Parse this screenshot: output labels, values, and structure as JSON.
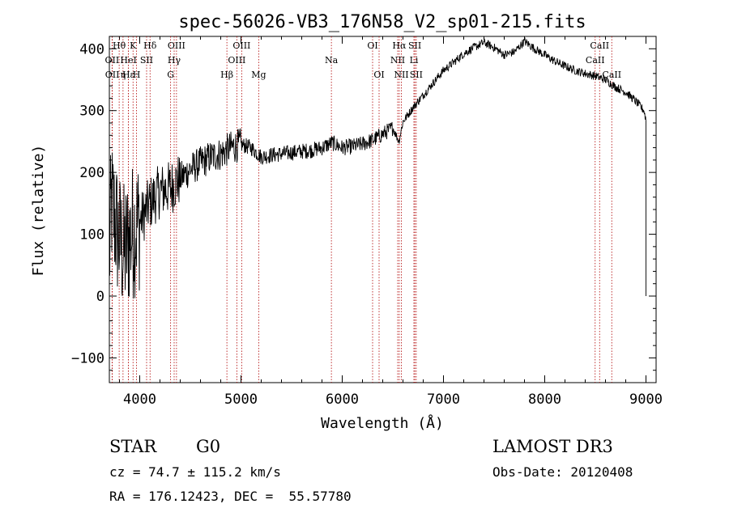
{
  "chart_data": {
    "type": "line",
    "title": "spec-56026-VB3_176N58_V2_sp01-215.fits",
    "xlabel": "Wavelength (Å)",
    "ylabel": "Flux (relative)",
    "xlim": [
      3700,
      9100
    ],
    "ylim": [
      -140,
      420
    ],
    "xticks": [
      4000,
      5000,
      6000,
      7000,
      8000,
      9000
    ],
    "yticks": [
      -100,
      0,
      100,
      200,
      300,
      400
    ],
    "grid": false,
    "series": [
      {
        "name": "flux",
        "anchors": [
          [
            3700,
            60
          ],
          [
            3720,
            150
          ],
          [
            3760,
            120
          ],
          [
            3800,
            90
          ],
          [
            3850,
            70
          ],
          [
            3900,
            95
          ],
          [
            3950,
            110
          ],
          [
            4000,
            120
          ],
          [
            4050,
            135
          ],
          [
            4100,
            150
          ],
          [
            4200,
            170
          ],
          [
            4300,
            175
          ],
          [
            4400,
            190
          ],
          [
            4500,
            205
          ],
          [
            4600,
            215
          ],
          [
            4700,
            225
          ],
          [
            4800,
            230
          ],
          [
            4900,
            240
          ],
          [
            5000,
            245
          ],
          [
            5100,
            240
          ],
          [
            5200,
            225
          ],
          [
            5300,
            228
          ],
          [
            5400,
            230
          ],
          [
            5500,
            232
          ],
          [
            5600,
            234
          ],
          [
            5700,
            236
          ],
          [
            5800,
            240
          ],
          [
            5900,
            248
          ],
          [
            6000,
            240
          ],
          [
            6100,
            242
          ],
          [
            6200,
            246
          ],
          [
            6300,
            252
          ],
          [
            6400,
            262
          ],
          [
            6500,
            272
          ],
          [
            6560,
            250
          ],
          [
            6600,
            282
          ],
          [
            6700,
            305
          ],
          [
            6800,
            325
          ],
          [
            6900,
            345
          ],
          [
            7000,
            365
          ],
          [
            7100,
            378
          ],
          [
            7200,
            392
          ],
          [
            7300,
            402
          ],
          [
            7400,
            410
          ],
          [
            7500,
            402
          ],
          [
            7600,
            390
          ],
          [
            7700,
            395
          ],
          [
            7800,
            412
          ],
          [
            7900,
            400
          ],
          [
            8000,
            390
          ],
          [
            8100,
            380
          ],
          [
            8200,
            372
          ],
          [
            8300,
            365
          ],
          [
            8400,
            360
          ],
          [
            8500,
            356
          ],
          [
            8600,
            350
          ],
          [
            8700,
            338
          ],
          [
            8800,
            330
          ],
          [
            8900,
            315
          ],
          [
            8980,
            300
          ],
          [
            9000,
            285
          ]
        ]
      }
    ],
    "lines": [
      {
        "label": "Hθ",
        "x": 3797,
        "row": 0
      },
      {
        "label": "OII",
        "x": 3727,
        "row": 1
      },
      {
        "label": "OII",
        "x": 3729,
        "row": 2
      },
      {
        "label": "Hε",
        "x": 3889,
        "row": 2
      },
      {
        "label": "K",
        "x": 3934,
        "row": 0
      },
      {
        "label": "HeI",
        "x": 3889,
        "row": 1
      },
      {
        "label": "η",
        "x": 3835,
        "row": 2
      },
      {
        "label": "H",
        "x": 3968,
        "row": 2
      },
      {
        "label": "SII",
        "x": 4068,
        "row": 1
      },
      {
        "label": "Hδ",
        "x": 4102,
        "row": 0
      },
      {
        "label": "OIII",
        "x": 4363,
        "row": 0
      },
      {
        "label": "Hγ",
        "x": 4340,
        "row": 1
      },
      {
        "label": "G",
        "x": 4305,
        "row": 2
      },
      {
        "label": "Hβ",
        "x": 4861,
        "row": 2
      },
      {
        "label": "OIII",
        "x": 5007,
        "row": 0
      },
      {
        "label": "OIII",
        "x": 4959,
        "row": 1
      },
      {
        "label": "Mg",
        "x": 5175,
        "row": 2
      },
      {
        "label": "Na",
        "x": 5893,
        "row": 1
      },
      {
        "label": "OI",
        "x": 6300,
        "row": 0
      },
      {
        "label": "OI",
        "x": 6364,
        "row": 2
      },
      {
        "label": "Hα",
        "x": 6563,
        "row": 0
      },
      {
        "label": "SII",
        "x": 6717,
        "row": 0
      },
      {
        "label": "NII",
        "x": 6548,
        "row": 1
      },
      {
        "label": "Li",
        "x": 6708,
        "row": 1
      },
      {
        "label": "NII",
        "x": 6584,
        "row": 2
      },
      {
        "label": "SII",
        "x": 6731,
        "row": 2
      },
      {
        "label": "CaII",
        "x": 8542,
        "row": 0
      },
      {
        "label": "CaII",
        "x": 8498,
        "row": 1
      },
      {
        "label": "CaII",
        "x": 8662,
        "row": 2
      }
    ]
  },
  "info": {
    "object_class": "STAR",
    "subclass": "G0",
    "survey": "LAMOST DR3",
    "redshift": "cz = 74.7 ± 115.2 km/s",
    "obs_date": "Obs-Date: 20120408",
    "coords": "RA = 176.12423, DEC =  55.57780"
  }
}
